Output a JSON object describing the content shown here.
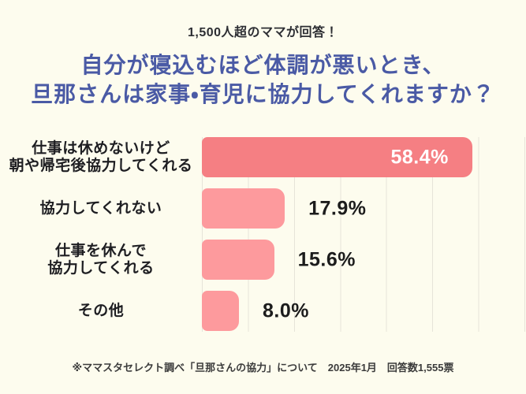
{
  "header": {
    "subtitle": "1,500人超のママが回答！"
  },
  "title": {
    "line1": "自分が寝込むほど体調が悪いとき、",
    "line2": "旦那さんは家事・育児に協力してくれますか？"
  },
  "chart_data": {
    "type": "bar",
    "orientation": "horizontal",
    "categories": [
      "仕事は休めないけど 朝や帰宅後協力してくれる",
      "協力してくれない",
      "仕事を休んで 協力してくれる",
      "その他"
    ],
    "category_lines": [
      [
        "仕事は休めないけど",
        "朝や帰宅後協力してくれる"
      ],
      [
        "協力してくれない"
      ],
      [
        "仕事を休んで",
        "協力してくれる"
      ],
      [
        "その他"
      ]
    ],
    "values": [
      58.4,
      17.9,
      15.6,
      8.0
    ],
    "value_labels": [
      "58.4%",
      "17.9%",
      "15.6%",
      "8.0%"
    ],
    "xlim": [
      0,
      70
    ],
    "gridline_interval": 10,
    "grid": true,
    "legend": "none",
    "value_label_position": [
      "inside-right",
      "outside-right",
      "outside-right",
      "outside-right"
    ]
  },
  "colors": {
    "background": "#fdfcee",
    "title_blue": "#4a5aa5",
    "bar_first": "#f57f83",
    "bar_rest": "#fd9a9d",
    "gridline": "#e6e4d9"
  },
  "footnote": {
    "text": "※ママスタセレクト調べ「旦那さんの協力」について　2025年1月　回答数1,555票"
  }
}
